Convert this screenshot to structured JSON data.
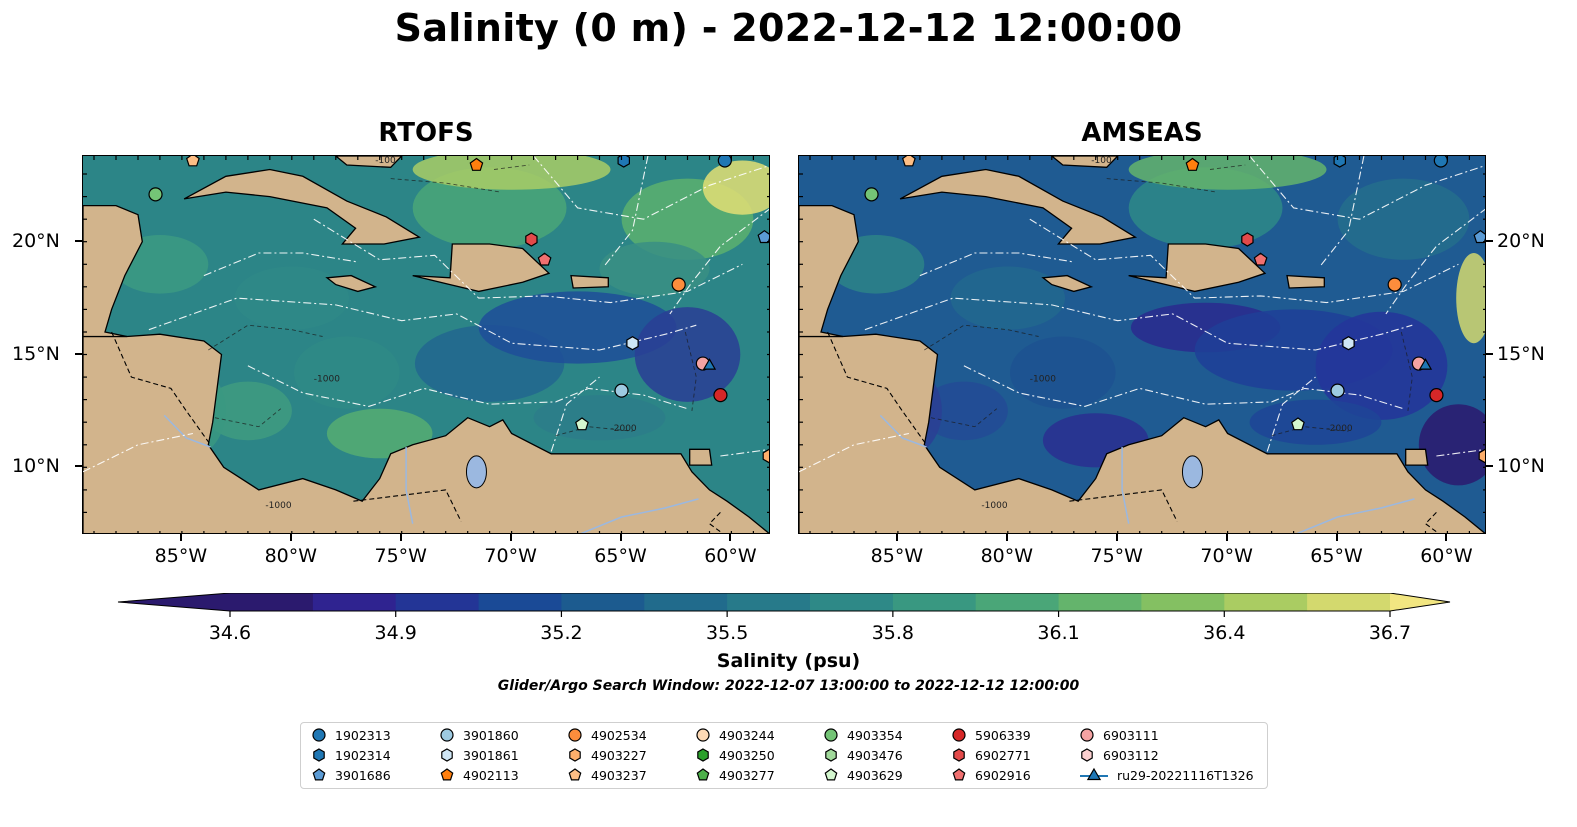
{
  "title": "Salinity (0 m) - 2022-12-12 12:00:00",
  "panels": [
    {
      "title": "RTOFS"
    },
    {
      "title": "AMSEAS"
    }
  ],
  "axes": {
    "lon_labels": [
      "85°W",
      "80°W",
      "75°W",
      "70°W",
      "65°W",
      "60°W"
    ],
    "lat_labels": [
      "20°N",
      "15°N",
      "10°N"
    ],
    "lon_range": [
      -89.5,
      -58.2
    ],
    "lat_range": [
      7.0,
      23.8
    ]
  },
  "contour_labels": [
    "-100",
    "-1000",
    "-2000"
  ],
  "colorbar": {
    "ticks": [
      "34.6",
      "34.9",
      "35.2",
      "35.5",
      "35.8",
      "36.1",
      "36.4",
      "36.7"
    ],
    "range": [
      34.6,
      36.7
    ],
    "label": "Salinity (psu)",
    "colormap": "haline",
    "colors": [
      "#2b1a6e",
      "#2f2390",
      "#233596",
      "#1a4a96",
      "#1c5b8f",
      "#216b8c",
      "#277a8a",
      "#2e8987",
      "#399881",
      "#4aa678",
      "#64b46c",
      "#84c062",
      "#aacc62",
      "#d3d96e",
      "#f2e681"
    ]
  },
  "search_window": "Glider/Argo Search Window: 2022-12-07 13:00:00 to 2022-12-12 12:00:00",
  "legend": [
    {
      "label": "1902313",
      "marker": "circle",
      "color": "#1f77b4"
    },
    {
      "label": "1902314",
      "marker": "hexagon",
      "color": "#1f77b4"
    },
    {
      "label": "3901686",
      "marker": "pentagon",
      "color": "#5b9bd5"
    },
    {
      "label": "3901860",
      "marker": "circle",
      "color": "#9ecae1"
    },
    {
      "label": "3901861",
      "marker": "hexagon",
      "color": "#cfe6f5"
    },
    {
      "label": "4902113",
      "marker": "pentagon",
      "color": "#ff7f0e"
    },
    {
      "label": "4902534",
      "marker": "circle",
      "color": "#fd8d3c"
    },
    {
      "label": "4903227",
      "marker": "hexagon",
      "color": "#fdae6b"
    },
    {
      "label": "4903237",
      "marker": "pentagon",
      "color": "#fdbe85"
    },
    {
      "label": "4903244",
      "marker": "circle",
      "color": "#fdd9b5"
    },
    {
      "label": "4903250",
      "marker": "hexagon",
      "color": "#2ca02c"
    },
    {
      "label": "4903277",
      "marker": "pentagon",
      "color": "#4daf4a"
    },
    {
      "label": "4903354",
      "marker": "circle",
      "color": "#74c476"
    },
    {
      "label": "4903476",
      "marker": "hexagon",
      "color": "#a1d99b"
    },
    {
      "label": "4903629",
      "marker": "pentagon",
      "color": "#d4f7cf"
    },
    {
      "label": "5906339",
      "marker": "circle",
      "color": "#d62728"
    },
    {
      "label": "6902771",
      "marker": "hexagon",
      "color": "#e34a4a"
    },
    {
      "label": "6902916",
      "marker": "pentagon",
      "color": "#f07070"
    },
    {
      "label": "6903111",
      "marker": "circle",
      "color": "#f4a3a3"
    },
    {
      "label": "6903112",
      "marker": "hexagon",
      "color": "#fbd0d0"
    },
    {
      "label": "ru29-20221116T1326",
      "marker": "triangle-line",
      "color": "#1f77b4"
    }
  ],
  "platforms": [
    {
      "id": "1902313",
      "marker": "circle",
      "color": "#1f77b4",
      "lon": -60.3,
      "lat": 23.6
    },
    {
      "id": "3901686",
      "marker": "pentagon",
      "color": "#5b9bd5",
      "lon": -58.5,
      "lat": 20.2
    },
    {
      "id": "1902314",
      "marker": "hexagon",
      "color": "#1f77b4",
      "lon": -64.9,
      "lat": 23.6
    },
    {
      "id": "4902113",
      "marker": "pentagon",
      "color": "#ff7f0e",
      "lon": -71.6,
      "lat": 23.4
    },
    {
      "id": "4903237",
      "marker": "pentagon",
      "color": "#fdbe85",
      "lon": -84.5,
      "lat": 23.6
    },
    {
      "id": "4903354",
      "marker": "circle",
      "color": "#74c476",
      "lon": -86.2,
      "lat": 22.1
    },
    {
      "id": "6902771",
      "marker": "hexagon",
      "color": "#e34a4a",
      "lon": -69.1,
      "lat": 20.1
    },
    {
      "id": "6902916",
      "marker": "pentagon",
      "color": "#f07070",
      "lon": -68.5,
      "lat": 19.2
    },
    {
      "id": "4902534",
      "marker": "circle",
      "color": "#fd8d3c",
      "lon": -62.4,
      "lat": 18.1
    },
    {
      "id": "3901861",
      "marker": "hexagon",
      "color": "#cfe6f5",
      "lon": -64.5,
      "lat": 15.5
    },
    {
      "id": "3901860",
      "marker": "circle",
      "color": "#9ecae1",
      "lon": -65.0,
      "lat": 13.4
    },
    {
      "id": "6903111",
      "marker": "circle",
      "color": "#f4a3a3",
      "lon": -61.3,
      "lat": 14.6
    },
    {
      "id": "ru29-20221116T1326",
      "marker": "triangle",
      "color": "#1f77b4",
      "lon": -61.0,
      "lat": 14.5
    },
    {
      "id": "5906339",
      "marker": "circle",
      "color": "#d62728",
      "lon": -60.5,
      "lat": 13.2
    },
    {
      "id": "4903629",
      "marker": "pentagon",
      "color": "#d4f7cf",
      "lon": -66.8,
      "lat": 11.9
    },
    {
      "id": "4903227",
      "marker": "hexagon",
      "color": "#fdae6b",
      "lon": -58.3,
      "lat": 10.5
    }
  ]
}
